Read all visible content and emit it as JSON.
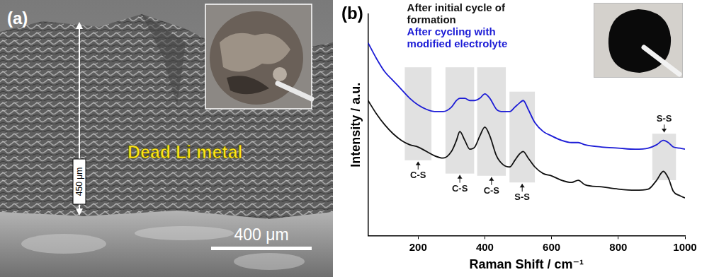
{
  "panel_a": {
    "panel_label": "(a)",
    "annotation": "Dead Li metal",
    "thickness_label": "450 μm",
    "scale_bar": "400 μm"
  },
  "chart_data": {
    "panel_label": "(b)",
    "type": "line",
    "x_label": "Raman Shift / cm⁻¹",
    "y_label": "Intensity / a.u.",
    "xlim": [
      50,
      1000
    ],
    "xticks": [
      200,
      400,
      600,
      800,
      1000
    ],
    "ylim": [
      0,
      100
    ],
    "tick_labels": "x",
    "grid": false,
    "legend": "upper left",
    "x": [
      50,
      75,
      100,
      125,
      150,
      175,
      200,
      225,
      250,
      275,
      300,
      315,
      325,
      340,
      355,
      370,
      385,
      400,
      415,
      435,
      455,
      475,
      490,
      505,
      515,
      530,
      550,
      575,
      600,
      630,
      660,
      680,
      700,
      750,
      800,
      850,
      890,
      915,
      935,
      950,
      965,
      985,
      1000
    ],
    "series": [
      {
        "name": "After initial cycle of formation",
        "color": "#111111",
        "values": [
          61,
          55,
          50,
          46,
          43,
          41,
          40,
          38,
          36,
          35,
          38,
          43,
          47,
          43,
          39,
          40,
          45,
          49,
          45,
          36,
          32,
          31,
          34,
          37,
          38,
          35,
          31,
          28,
          27,
          25,
          24,
          25,
          23,
          22,
          21,
          20.5,
          21,
          25,
          29,
          26,
          20,
          18,
          17
        ]
      },
      {
        "name": "After cycling with modified electrolyte",
        "color": "#1c1cd6",
        "values": [
          87,
          80,
          74,
          70,
          66,
          62,
          59,
          57,
          56,
          56,
          58,
          61,
          62,
          62,
          61,
          61,
          62,
          64,
          62,
          57,
          56,
          56,
          58,
          60,
          61,
          57,
          51,
          47,
          45,
          43,
          42,
          42,
          41,
          40,
          39.5,
          39,
          39.5,
          41,
          43,
          42,
          40,
          39.5,
          39
        ]
      }
    ],
    "bands": [
      {
        "label": "C-S",
        "x": [
          160,
          240
        ],
        "y": [
          34,
          76
        ],
        "label_side": "below"
      },
      {
        "label": "C-S",
        "x": [
          282,
          368
        ],
        "y": [
          28,
          76
        ],
        "label_side": "below"
      },
      {
        "label": "C-S",
        "x": [
          377,
          463
        ],
        "y": [
          27,
          76
        ],
        "label_side": "below"
      },
      {
        "label": "S-S",
        "x": [
          474,
          550
        ],
        "y": [
          24,
          65
        ],
        "label_side": "below"
      },
      {
        "label": "S-S",
        "x": [
          902,
          973
        ],
        "y": [
          25,
          46
        ],
        "label_side": "above"
      }
    ]
  }
}
